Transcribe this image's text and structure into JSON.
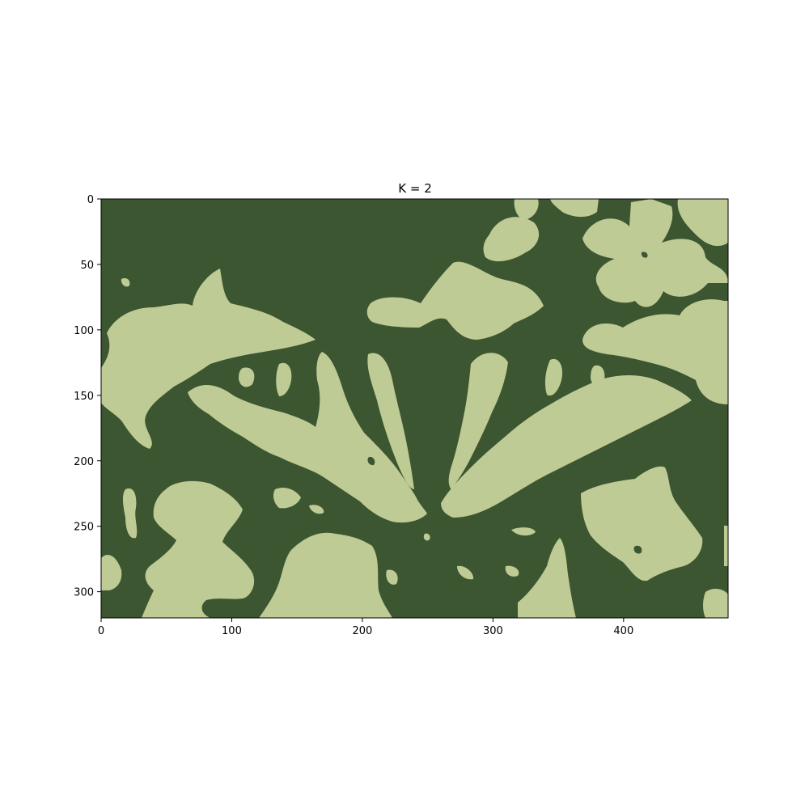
{
  "title": "K = 2",
  "image_width": 480,
  "image_height": 320,
  "colors": {
    "dark_cluster": "#3c5632",
    "light_cluster": "#bfcb94"
  },
  "x_ticks": [
    0,
    100,
    200,
    300,
    400
  ],
  "y_ticks": [
    0,
    50,
    100,
    150,
    200,
    250,
    300
  ]
}
